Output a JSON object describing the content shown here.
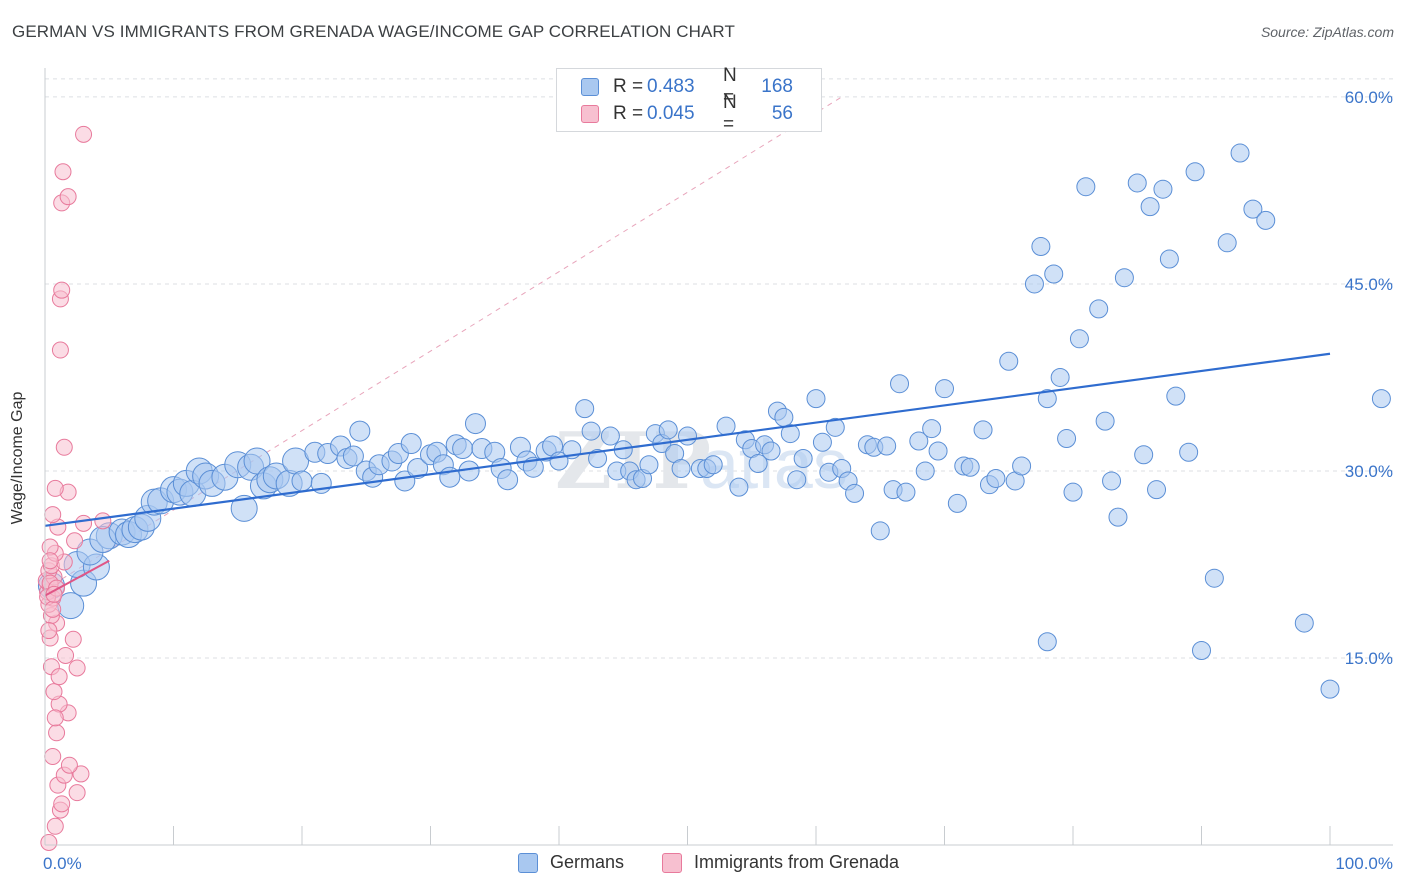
{
  "header": {
    "title": "GERMAN VS IMMIGRANTS FROM GRENADA WAGE/INCOME GAP CORRELATION CHART",
    "source": "Source: ZipAtlas.com"
  },
  "legend_top": {
    "rows": [
      {
        "r_label": "R =",
        "r_value": "0.483",
        "n_label": "N =",
        "n_value": "168"
      },
      {
        "r_label": "R =",
        "r_value": "0.045",
        "n_label": "N =",
        "n_value": "56"
      }
    ]
  },
  "legend_bottom": {
    "items": [
      "Germans",
      "Immigrants from Grenada"
    ]
  },
  "colors": {
    "blue_fill": "#a9c8f0",
    "blue_stroke": "#5b8fd6",
    "blue_line": "#2f6ccf",
    "pink_fill": "#f7c0d0",
    "pink_stroke": "#e87a9c",
    "pink_line": "#e05586",
    "axis_text": "#3a74c9",
    "grid": "#dcdfe3"
  },
  "chart_data": {
    "type": "scatter",
    "title": "GERMAN VS IMMIGRANTS FROM GRENADA WAGE/INCOME GAP CORRELATION CHART",
    "xlabel": "",
    "ylabel": "Wage/Income Gap",
    "xlim": [
      0,
      100
    ],
    "ylim": [
      0,
      62
    ],
    "x_tick_labels": [
      "0.0%",
      "100.0%"
    ],
    "y_tick_labels": [
      "15.0%",
      "30.0%",
      "45.0%",
      "60.0%"
    ],
    "y_ticks": [
      15,
      30,
      45,
      60
    ],
    "grid": true,
    "legend_position": "top-center",
    "watermark": "ZIPatlas",
    "series": [
      {
        "name": "Germans",
        "color": "#a9c8f0",
        "points": [
          [
            0.5,
            20.8
          ],
          [
            2,
            19.2
          ],
          [
            3,
            21
          ],
          [
            2.5,
            22.5
          ],
          [
            4,
            22.3
          ],
          [
            3.5,
            23.5
          ],
          [
            5,
            24.8
          ],
          [
            4.5,
            24.5
          ],
          [
            6,
            25.1
          ],
          [
            6.5,
            24.9
          ],
          [
            7,
            25.3
          ],
          [
            7.5,
            25.5
          ],
          [
            8,
            26.2
          ],
          [
            8.5,
            27.5
          ],
          [
            9,
            27.6
          ],
          [
            10,
            28.5
          ],
          [
            10.5,
            28.3
          ],
          [
            11,
            29.0
          ],
          [
            11.5,
            28.2
          ],
          [
            12,
            30.0
          ],
          [
            12.5,
            29.6
          ],
          [
            13,
            29.0
          ],
          [
            14,
            29.5
          ],
          [
            15,
            30.5
          ],
          [
            15.5,
            27.0
          ],
          [
            16,
            30.3
          ],
          [
            16.5,
            30.8
          ],
          [
            17,
            28.8
          ],
          [
            17.5,
            29.3
          ],
          [
            18,
            29.6
          ],
          [
            19,
            29.0
          ],
          [
            19.5,
            30.8
          ],
          [
            20,
            29.2
          ],
          [
            21,
            31.5
          ],
          [
            21.5,
            29.0
          ],
          [
            22,
            31.4
          ],
          [
            23,
            32.0
          ],
          [
            23.5,
            31.0
          ],
          [
            24,
            31.2
          ],
          [
            24.5,
            33.2
          ],
          [
            25,
            30.0
          ],
          [
            25.5,
            29.5
          ],
          [
            26,
            30.5
          ],
          [
            27,
            30.8
          ],
          [
            27.5,
            31.4
          ],
          [
            28,
            29.2
          ],
          [
            28.5,
            32.2
          ],
          [
            29,
            30.2
          ],
          [
            30,
            31.3
          ],
          [
            30.5,
            31.5
          ],
          [
            31,
            30.5
          ],
          [
            31.5,
            29.5
          ],
          [
            32,
            32.1
          ],
          [
            32.5,
            31.8
          ],
          [
            33,
            30.0
          ],
          [
            33.5,
            33.8
          ],
          [
            34,
            31.8
          ],
          [
            35,
            31.5
          ],
          [
            35.5,
            30.2
          ],
          [
            36,
            29.3
          ],
          [
            37,
            31.9
          ],
          [
            37.5,
            30.8
          ],
          [
            38,
            30.3
          ],
          [
            39,
            31.6
          ],
          [
            39.5,
            32.0
          ],
          [
            40,
            30.8
          ],
          [
            41,
            31.7
          ],
          [
            42,
            35.0
          ],
          [
            42.5,
            33.2
          ],
          [
            43,
            31.0
          ],
          [
            44,
            32.8
          ],
          [
            44.5,
            30.0
          ],
          [
            45,
            31.7
          ],
          [
            45.5,
            30.0
          ],
          [
            46,
            29.3
          ],
          [
            46.5,
            29.4
          ],
          [
            47,
            30.5
          ],
          [
            47.5,
            33.0
          ],
          [
            48,
            32.2
          ],
          [
            48.5,
            33.3
          ],
          [
            49,
            31.4
          ],
          [
            49.5,
            30.2
          ],
          [
            50,
            32.8
          ],
          [
            51,
            30.2
          ],
          [
            51.5,
            30.2
          ],
          [
            52,
            30.5
          ],
          [
            53,
            33.6
          ],
          [
            54,
            28.7
          ],
          [
            54.5,
            32.5
          ],
          [
            55,
            31.8
          ],
          [
            55.5,
            30.6
          ],
          [
            56,
            32.1
          ],
          [
            56.5,
            31.6
          ],
          [
            57,
            34.8
          ],
          [
            57.5,
            34.3
          ],
          [
            58,
            33.0
          ],
          [
            58.5,
            29.3
          ],
          [
            59,
            31.0
          ],
          [
            60,
            35.8
          ],
          [
            60.5,
            32.3
          ],
          [
            61,
            29.9
          ],
          [
            61.5,
            33.5
          ],
          [
            62,
            30.2
          ],
          [
            62.5,
            29.2
          ],
          [
            63,
            28.2
          ],
          [
            64,
            32.1
          ],
          [
            64.5,
            31.9
          ],
          [
            65,
            25.2
          ],
          [
            65.5,
            32.0
          ],
          [
            66,
            28.5
          ],
          [
            66.5,
            37.0
          ],
          [
            67,
            28.3
          ],
          [
            68,
            32.4
          ],
          [
            68.5,
            30.0
          ],
          [
            69,
            33.4
          ],
          [
            69.5,
            31.6
          ],
          [
            70,
            36.6
          ],
          [
            71,
            27.4
          ],
          [
            71.5,
            30.4
          ],
          [
            72,
            30.3
          ],
          [
            73,
            33.3
          ],
          [
            73.5,
            28.9
          ],
          [
            74,
            29.4
          ],
          [
            75,
            38.8
          ],
          [
            75.5,
            29.2
          ],
          [
            76,
            30.4
          ],
          [
            77,
            45.0
          ],
          [
            77.5,
            48.0
          ],
          [
            78,
            35.8
          ],
          [
            78.5,
            45.8
          ],
          [
            79,
            37.5
          ],
          [
            79.5,
            32.6
          ],
          [
            80,
            28.3
          ],
          [
            80.5,
            40.6
          ],
          [
            81,
            52.8
          ],
          [
            82,
            43.0
          ],
          [
            82.5,
            34.0
          ],
          [
            83,
            29.2
          ],
          [
            83.5,
            26.3
          ],
          [
            84,
            45.5
          ],
          [
            85,
            53.1
          ],
          [
            85.5,
            31.3
          ],
          [
            86,
            51.2
          ],
          [
            86.5,
            28.5
          ],
          [
            87,
            52.6
          ],
          [
            87.5,
            47.0
          ],
          [
            88,
            36.0
          ],
          [
            89,
            31.5
          ],
          [
            89.5,
            54.0
          ],
          [
            90,
            15.6
          ],
          [
            91,
            21.4
          ],
          [
            92,
            48.3
          ],
          [
            93,
            55.5
          ],
          [
            94,
            51.0
          ],
          [
            95,
            50.1
          ],
          [
            78,
            16.3
          ],
          [
            98,
            17.8
          ],
          [
            100,
            12.5
          ],
          [
            104,
            35.8
          ]
        ]
      },
      {
        "name": "Immigrants from Grenada",
        "color": "#f7c0d0",
        "points": [
          [
            0.3,
            0.2
          ],
          [
            0.8,
            1.5
          ],
          [
            1.2,
            2.8
          ],
          [
            2.5,
            4.2
          ],
          [
            1.0,
            4.8
          ],
          [
            2.8,
            5.7
          ],
          [
            1.5,
            5.6
          ],
          [
            0.6,
            7.1
          ],
          [
            0.9,
            9.0
          ],
          [
            1.8,
            10.6
          ],
          [
            1.1,
            11.3
          ],
          [
            0.7,
            12.3
          ],
          [
            0.5,
            14.3
          ],
          [
            2.5,
            14.2
          ],
          [
            1.6,
            15.2
          ],
          [
            0.4,
            16.6
          ],
          [
            2.2,
            16.5
          ],
          [
            0.9,
            17.8
          ],
          [
            0.5,
            18.4
          ],
          [
            0.3,
            19.3
          ],
          [
            0.6,
            19.8
          ],
          [
            0.2,
            20.3
          ],
          [
            0.4,
            20.8
          ],
          [
            0.1,
            21.2
          ],
          [
            0.7,
            21.5
          ],
          [
            0.3,
            22.0
          ],
          [
            0.5,
            22.4
          ],
          [
            1.5,
            22.7
          ],
          [
            0.8,
            23.4
          ],
          [
            2.3,
            24.4
          ],
          [
            0.4,
            23.9
          ],
          [
            1.0,
            25.5
          ],
          [
            3.0,
            25.8
          ],
          [
            0.6,
            26.5
          ],
          [
            4.5,
            26.0
          ],
          [
            1.8,
            28.3
          ],
          [
            0.8,
            28.6
          ],
          [
            1.5,
            31.9
          ],
          [
            1.2,
            39.7
          ],
          [
            1.2,
            43.8
          ],
          [
            1.3,
            44.5
          ],
          [
            1.3,
            51.5
          ],
          [
            1.8,
            52.0
          ],
          [
            1.4,
            54.0
          ],
          [
            3.0,
            57.0
          ],
          [
            0.4,
            21.0
          ],
          [
            0.2,
            19.9
          ],
          [
            0.9,
            20.6
          ],
          [
            0.6,
            18.9
          ],
          [
            0.3,
            17.2
          ],
          [
            1.1,
            13.5
          ],
          [
            0.8,
            10.2
          ],
          [
            1.9,
            6.4
          ],
          [
            1.3,
            3.3
          ],
          [
            0.4,
            22.8
          ],
          [
            0.7,
            20.1
          ]
        ]
      }
    ],
    "trend_lines": [
      {
        "series": "Germans",
        "from": [
          0,
          25.6
        ],
        "to": [
          100,
          39.4
        ]
      },
      {
        "series": "Immigrants from Grenada",
        "from": [
          0,
          20.0
        ],
        "to": [
          5,
          22.8
        ]
      }
    ],
    "reference_line": {
      "from": [
        0,
        20.5
      ],
      "to": [
        62,
        60.0
      ],
      "style": "dashed"
    }
  }
}
